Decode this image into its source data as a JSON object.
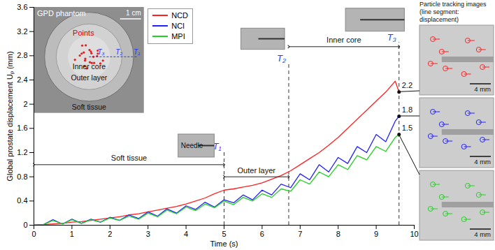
{
  "chart_data": {
    "type": "line",
    "x_label": "Time (s)",
    "y_label": "Global prostate displacement Uₚ (mm)",
    "x": [
      0,
      0.25,
      0.5,
      0.75,
      1,
      1.25,
      1.5,
      1.75,
      2,
      2.25,
      2.5,
      2.75,
      3,
      3.25,
      3.5,
      3.75,
      4,
      4.25,
      4.5,
      4.75,
      5,
      5.25,
      5.5,
      5.75,
      6,
      6.25,
      6.5,
      6.75,
      7,
      7.25,
      7.5,
      7.75,
      8,
      8.25,
      8.5,
      8.75,
      9,
      9.25,
      9.5,
      9.6
    ],
    "series": [
      {
        "name": "NCD",
        "color": "#ff2020",
        "values": [
          0,
          0.01,
          0.02,
          0.03,
          0.05,
          0.06,
          0.08,
          0.1,
          0.12,
          0.14,
          0.17,
          0.19,
          0.22,
          0.25,
          0.28,
          0.31,
          0.35,
          0.4,
          0.45,
          0.52,
          0.58,
          0.6,
          0.63,
          0.66,
          0.7,
          0.76,
          0.82,
          0.9,
          1.0,
          1.1,
          1.2,
          1.32,
          1.45,
          1.6,
          1.75,
          1.9,
          2.05,
          2.2,
          2.38,
          2.2
        ]
      },
      {
        "name": "NCI",
        "color": "#2020ff",
        "values": [
          0,
          0.01,
          0.09,
          0.02,
          0.1,
          0.03,
          0.1,
          0.05,
          0.13,
          0.08,
          0.17,
          0.11,
          0.22,
          0.15,
          0.27,
          0.2,
          0.32,
          0.26,
          0.38,
          0.3,
          0.42,
          0.37,
          0.5,
          0.42,
          0.58,
          0.5,
          0.68,
          0.62,
          0.85,
          0.75,
          1.0,
          0.88,
          1.12,
          1.02,
          1.3,
          1.2,
          1.5,
          1.38,
          1.72,
          1.8
        ]
      },
      {
        "name": "MPI",
        "color": "#20d020",
        "values": [
          0,
          0.01,
          0.08,
          0.02,
          0.09,
          0.03,
          0.09,
          0.05,
          0.12,
          0.08,
          0.15,
          0.1,
          0.2,
          0.14,
          0.25,
          0.19,
          0.3,
          0.24,
          0.35,
          0.29,
          0.4,
          0.34,
          0.46,
          0.4,
          0.52,
          0.46,
          0.6,
          0.56,
          0.75,
          0.68,
          0.88,
          0.8,
          1.0,
          0.92,
          1.15,
          1.08,
          1.3,
          1.22,
          1.45,
          1.5
        ]
      }
    ],
    "xlim": [
      0,
      10
    ],
    "xticks": [
      0,
      1,
      2,
      3,
      4,
      5,
      6,
      7,
      8,
      9,
      10
    ],
    "ylim": [
      0,
      3.6
    ],
    "yticks": [
      0,
      0.4,
      0.8,
      1.2,
      1.6,
      2,
      2.4,
      2.8,
      3.2,
      3.6
    ],
    "grid": false,
    "legend": "top",
    "markers": [
      {
        "label": "T₁",
        "x": 5
      },
      {
        "label": "T₂",
        "x": 6.7
      },
      {
        "label": "T₃",
        "x": 9.6
      }
    ],
    "spans": [
      {
        "label": "Soft tissue",
        "from": 0,
        "to": 5,
        "y": 1.0
      },
      {
        "label": "Outer layer",
        "from": 5,
        "to": 6.7,
        "y": 0.8
      },
      {
        "label": "Inner core",
        "from": 6.7,
        "to": 9.6,
        "y": 2.95
      }
    ],
    "end_labels": [
      {
        "series": "NCD",
        "value": 2.2
      },
      {
        "series": "NCI",
        "value": 1.8
      },
      {
        "series": "MPI",
        "value": 1.5
      }
    ],
    "needle_label": "Needle",
    "phantom_inset": {
      "title": "GPD phantom",
      "scale_bar": "1 cm",
      "points_label": "Points",
      "markers": [
        "T₃",
        "T₂",
        "T₁"
      ],
      "regions": [
        "Inner core",
        "Outer layer",
        "Soft tissue"
      ]
    },
    "particle_panel": {
      "title": "Particle tracking images (line segment: displacement)",
      "scale_bars": [
        "4 mm",
        "4 mm",
        "4 mm"
      ]
    }
  }
}
